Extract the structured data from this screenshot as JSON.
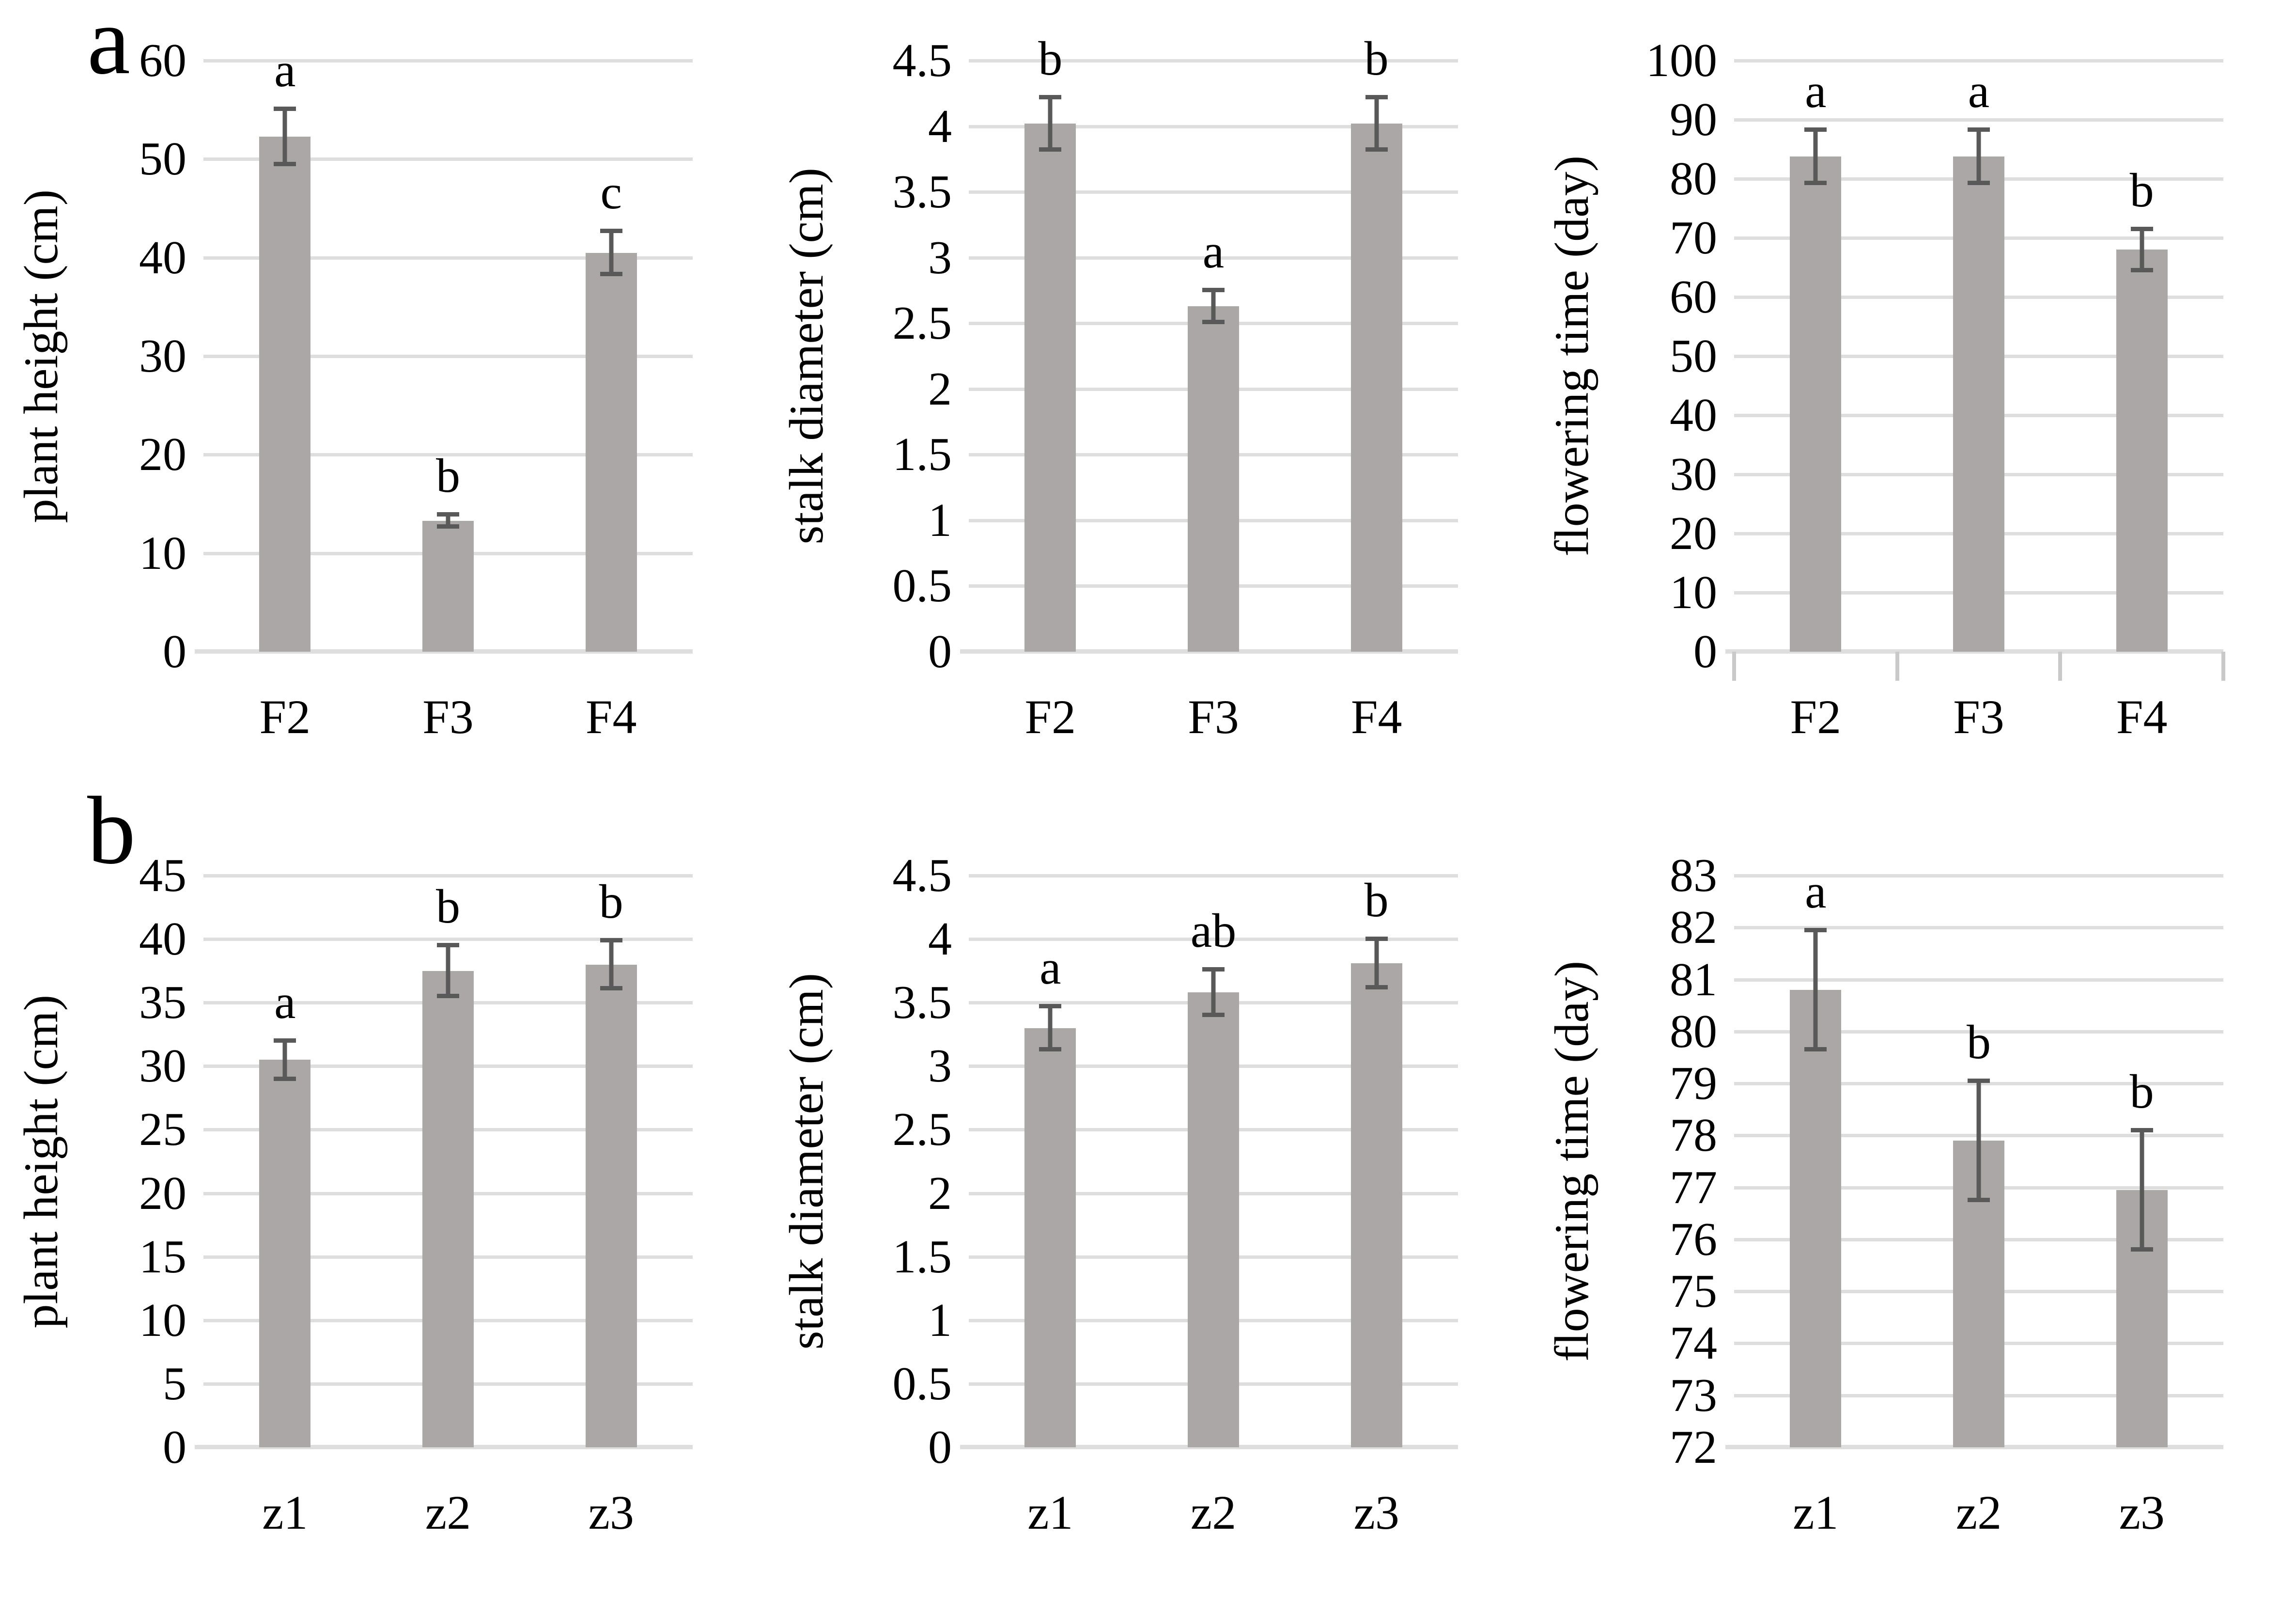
{
  "figure": {
    "panels": [
      {
        "label": "a"
      },
      {
        "label": "b"
      }
    ],
    "colors": {
      "bar": "#aba7a7",
      "error_bar": "#595959",
      "gridline": "#dedede",
      "axis_line": "#dedede",
      "x_tick": "#c9c9c9",
      "text": "#000000",
      "background": "#ffffff"
    }
  },
  "chart_data": [
    {
      "panel": "a",
      "type": "bar",
      "title": "",
      "ylabel": "plant height (cm)",
      "xlabel": "",
      "ylim": [
        0,
        60
      ],
      "ytick_step": 10,
      "grid": true,
      "legend": null,
      "categories": [
        "F2",
        "F3",
        "F4"
      ],
      "values": [
        52.3,
        13.3,
        40.5
      ],
      "errors": [
        2.8,
        0.6,
        2.2
      ],
      "sig_letters": [
        "a",
        "b",
        "c"
      ],
      "x_axis_ticks": false
    },
    {
      "panel": "a",
      "type": "bar",
      "title": "",
      "ylabel": "stalk diameter (cm)",
      "xlabel": "",
      "ylim": [
        0,
        4.5
      ],
      "ytick_step": 0.5,
      "grid": true,
      "legend": null,
      "categories": [
        "F2",
        "F3",
        "F4"
      ],
      "values": [
        4.02,
        2.63,
        4.02
      ],
      "errors": [
        0.2,
        0.12,
        0.2
      ],
      "sig_letters": [
        "b",
        "a",
        "b"
      ],
      "x_axis_ticks": false
    },
    {
      "panel": "a",
      "type": "bar",
      "title": "",
      "ylabel": "flowering time (day)",
      "xlabel": "",
      "ylim": [
        0,
        100
      ],
      "ytick_step": 10,
      "grid": true,
      "legend": null,
      "categories": [
        "F2",
        "F3",
        "F4"
      ],
      "values": [
        83.8,
        83.8,
        68
      ],
      "errors": [
        4.5,
        4.5,
        3.5
      ],
      "sig_letters": [
        "a",
        "a",
        "b"
      ],
      "x_axis_ticks": true
    },
    {
      "panel": "b",
      "type": "bar",
      "title": "",
      "ylabel": "plant height (cm)",
      "xlabel": "",
      "ylim": [
        0,
        45
      ],
      "ytick_step": 5,
      "grid": true,
      "legend": null,
      "categories": [
        "z1",
        "z2",
        "z3"
      ],
      "values": [
        30.5,
        37.5,
        38
      ],
      "errors": [
        1.5,
        2,
        1.9
      ],
      "sig_letters": [
        "a",
        "b",
        "b"
      ],
      "x_axis_ticks": false
    },
    {
      "panel": "b",
      "type": "bar",
      "title": "",
      "ylabel": "stalk diameter (cm)",
      "xlabel": "",
      "ylim": [
        0,
        4.5
      ],
      "ytick_step": 0.5,
      "grid": true,
      "legend": null,
      "categories": [
        "z1",
        "z2",
        "z3"
      ],
      "values": [
        3.3,
        3.58,
        3.81
      ],
      "errors": [
        0.17,
        0.18,
        0.19
      ],
      "sig_letters": [
        "a",
        "ab",
        "b"
      ],
      "x_axis_ticks": false
    },
    {
      "panel": "b",
      "type": "bar",
      "title": "",
      "ylabel": "flowering time (day)",
      "xlabel": "",
      "ylim": [
        72,
        83
      ],
      "ytick_step": 1,
      "grid": true,
      "legend": null,
      "categories": [
        "z1",
        "z2",
        "z3"
      ],
      "values": [
        80.8,
        77.9,
        76.95
      ],
      "errors": [
        1.15,
        1.15,
        1.15
      ],
      "sig_letters": [
        "a",
        "b",
        "b"
      ],
      "x_axis_ticks": false
    }
  ]
}
